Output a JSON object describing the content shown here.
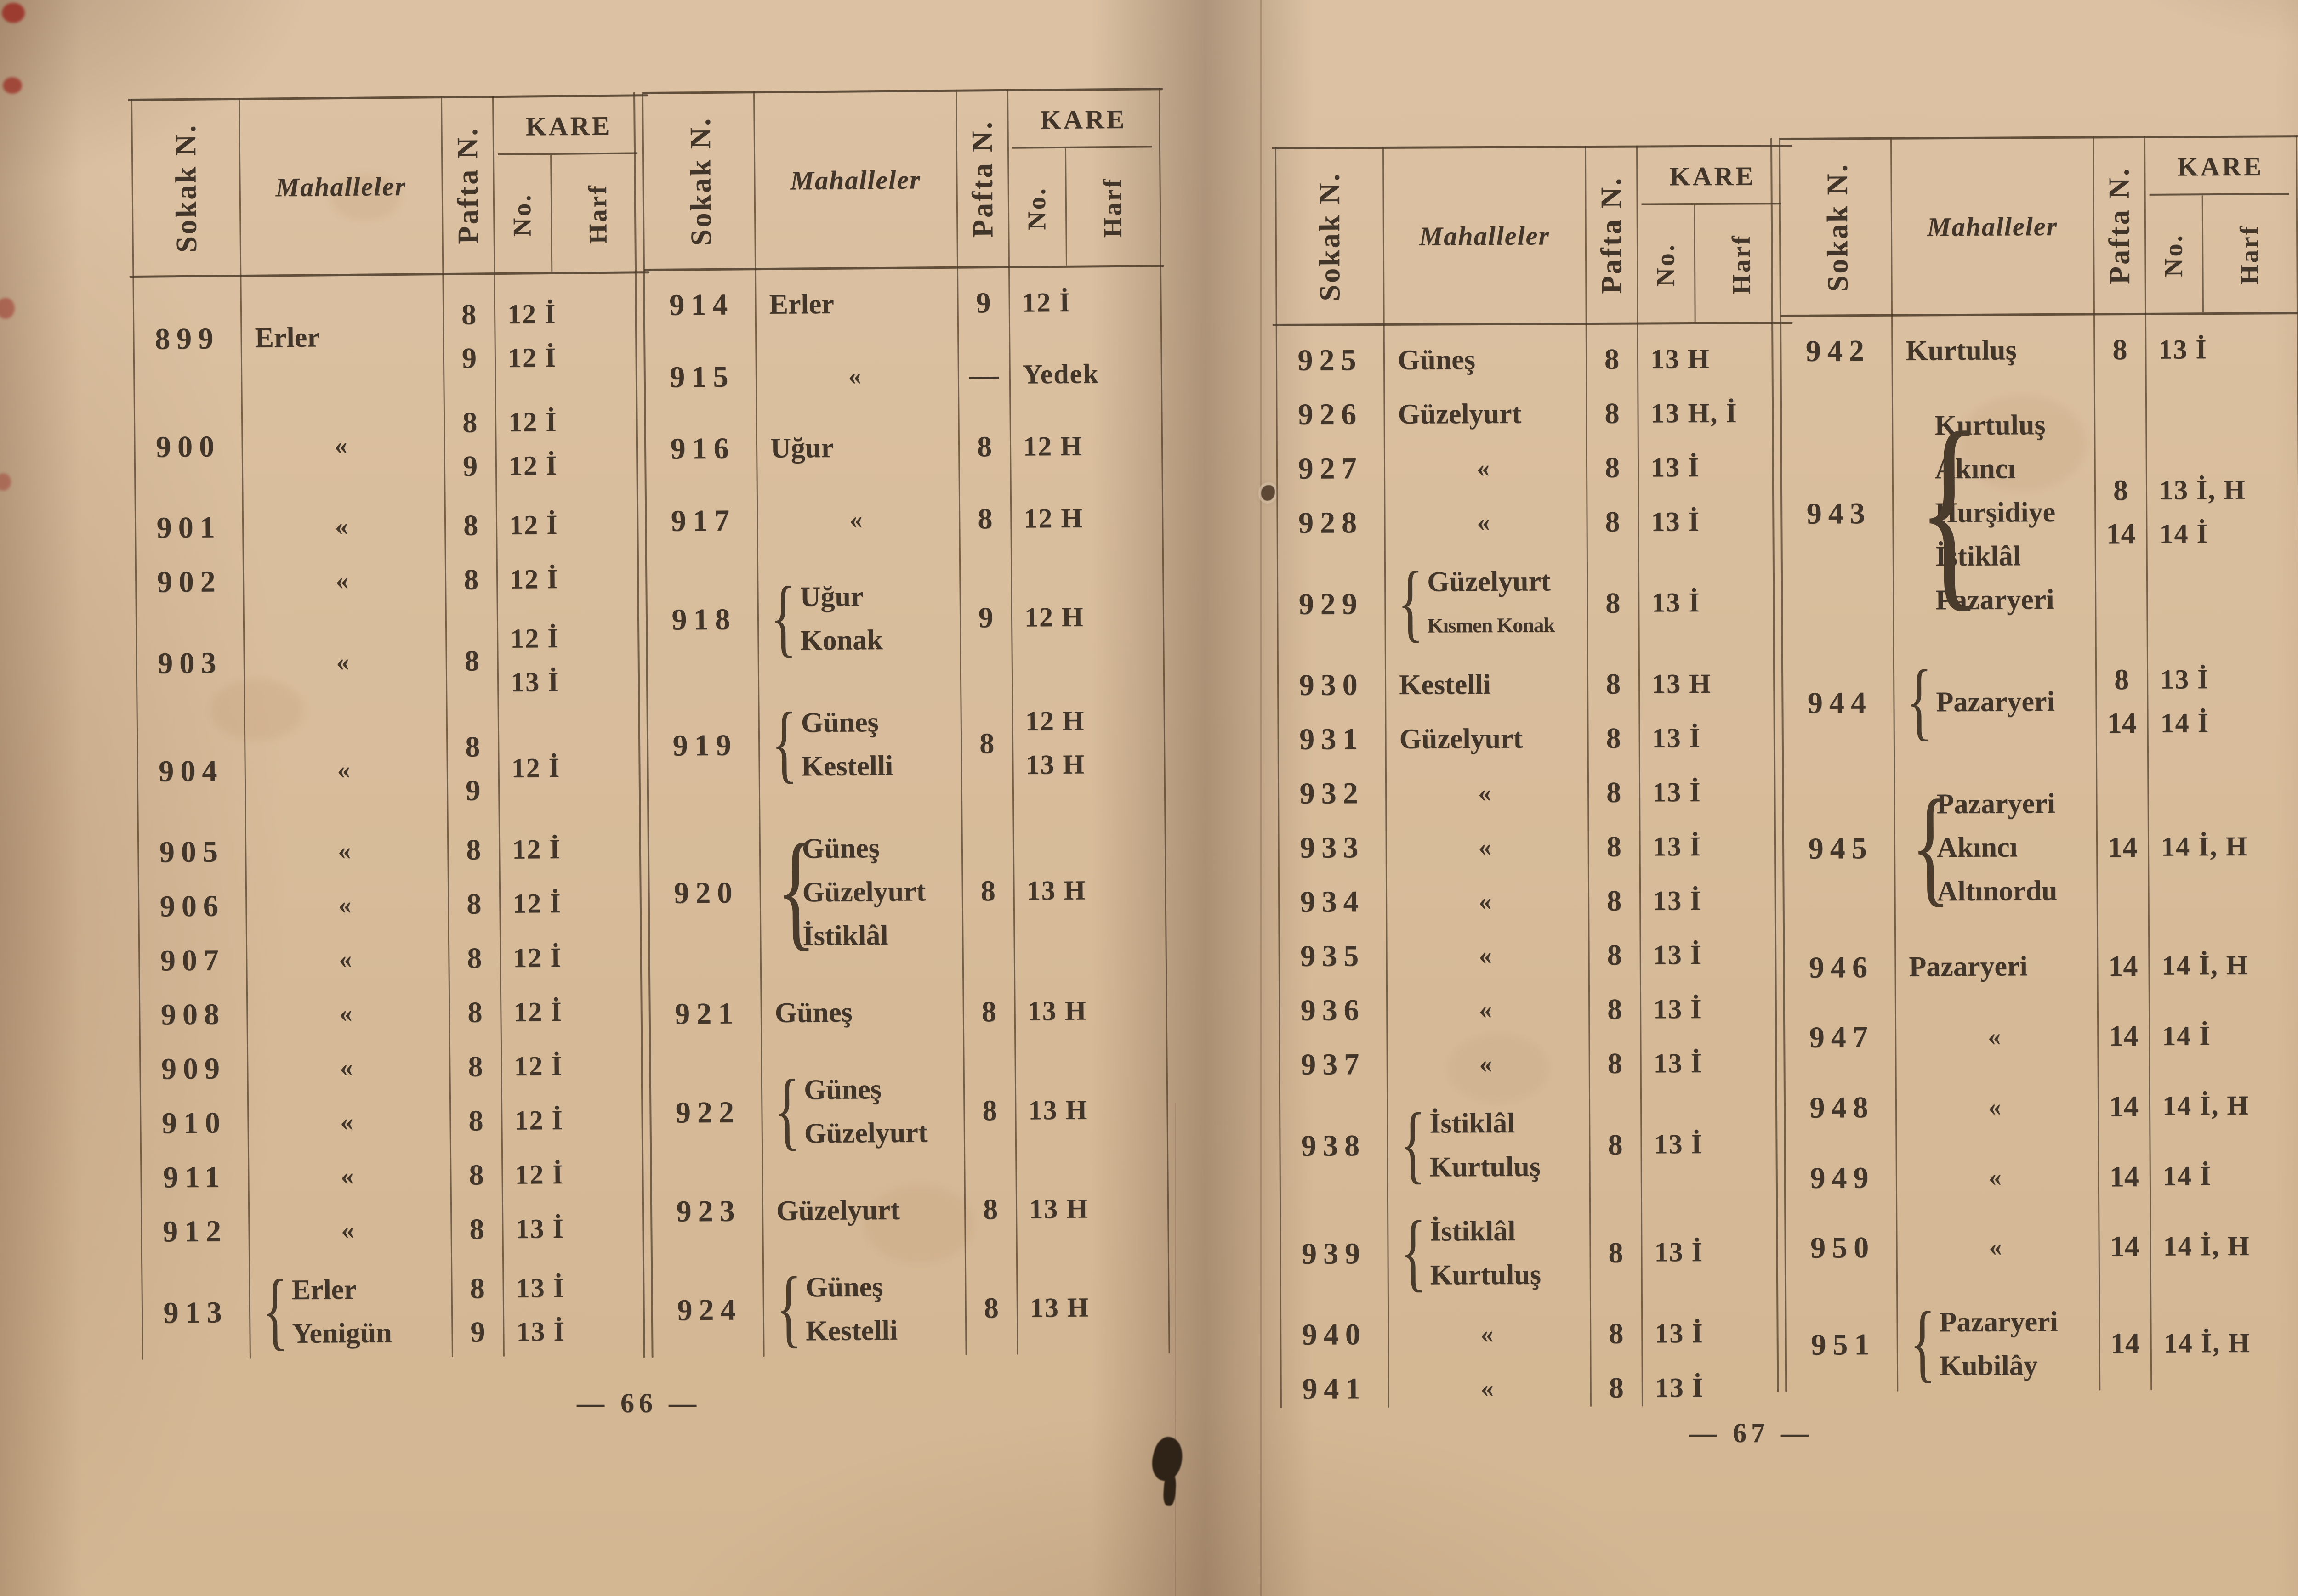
{
  "header_labels": {
    "sokak": "Sokak N.",
    "mahalleler": "Mahalleler",
    "pafta": "Pafta N.",
    "kare": "KARE",
    "no": "No.",
    "harf": "Harf"
  },
  "ditto_mark": "«",
  "pages": [
    {
      "page_number": "66",
      "page_label": "— 66 —",
      "tables": [
        {
          "rows": [
            {
              "no": "899",
              "mah": [
                "Erler"
              ],
              "pafta": [
                "8",
                "9"
              ],
              "kare": [
                "12 İ",
                "12 İ"
              ]
            },
            {
              "no": "900",
              "mah": [
                "«"
              ],
              "pafta": [
                "8",
                "9"
              ],
              "kare": [
                "12 İ",
                "12 İ"
              ]
            },
            {
              "no": "901",
              "mah": [
                "«"
              ],
              "pafta": [
                "8"
              ],
              "kare": [
                "12 İ"
              ]
            },
            {
              "no": "902",
              "mah": [
                "«"
              ],
              "pafta": [
                "8"
              ],
              "kare": [
                "12 İ"
              ]
            },
            {
              "no": "903",
              "mah": [
                "«"
              ],
              "pafta": [
                "8"
              ],
              "kare": [
                "12 İ",
                "13 İ"
              ]
            },
            {
              "no": "904",
              "mah": [
                "«"
              ],
              "pafta": [
                "8",
                "9"
              ],
              "kare": [
                "12 İ"
              ]
            },
            {
              "no": "905",
              "mah": [
                "«"
              ],
              "pafta": [
                "8"
              ],
              "kare": [
                "12 İ"
              ]
            },
            {
              "no": "906",
              "mah": [
                "«"
              ],
              "pafta": [
                "8"
              ],
              "kare": [
                "12 İ"
              ]
            },
            {
              "no": "907",
              "mah": [
                "«"
              ],
              "pafta": [
                "8"
              ],
              "kare": [
                "12 İ"
              ]
            },
            {
              "no": "908",
              "mah": [
                "«"
              ],
              "pafta": [
                "8"
              ],
              "kare": [
                "12 İ"
              ]
            },
            {
              "no": "909",
              "mah": [
                "«"
              ],
              "pafta": [
                "8"
              ],
              "kare": [
                "12 İ"
              ]
            },
            {
              "no": "910",
              "mah": [
                "«"
              ],
              "pafta": [
                "8"
              ],
              "kare": [
                "12 İ"
              ]
            },
            {
              "no": "911",
              "mah": [
                "«"
              ],
              "pafta": [
                "8"
              ],
              "kare": [
                "12 İ"
              ]
            },
            {
              "no": "912",
              "mah": [
                "«"
              ],
              "pafta": [
                "8"
              ],
              "kare": [
                "13 İ"
              ]
            },
            {
              "no": "913",
              "mah": [
                "Erler",
                "Yenigün"
              ],
              "pafta": [
                "8",
                "9"
              ],
              "kare": [
                "13 İ",
                "13 İ"
              ],
              "brace": true
            }
          ]
        },
        {
          "rows": [
            {
              "no": "914",
              "mah": [
                "Erler"
              ],
              "pafta": [
                "9"
              ],
              "kare": [
                "12 İ"
              ]
            },
            {
              "no": "915",
              "mah": [
                "«"
              ],
              "pafta": [
                "—"
              ],
              "kare": [
                "Yedek"
              ]
            },
            {
              "no": "916",
              "mah": [
                "Uğur"
              ],
              "pafta": [
                "8"
              ],
              "kare": [
                "12 H"
              ]
            },
            {
              "no": "917",
              "mah": [
                "«"
              ],
              "pafta": [
                "8"
              ],
              "kare": [
                "12 H"
              ]
            },
            {
              "no": "918",
              "mah": [
                "Uğur",
                "Konak"
              ],
              "pafta": [
                "9"
              ],
              "kare": [
                "12 H"
              ],
              "brace": true
            },
            {
              "no": "919",
              "mah": [
                "Güneş",
                "Kestelli"
              ],
              "pafta": [
                "8"
              ],
              "kare": [
                "12 H",
                "13 H"
              ],
              "brace": true
            },
            {
              "no": "920",
              "mah": [
                "Güneş",
                "Güzelyurt",
                "İstiklâl"
              ],
              "pafta": [
                "8"
              ],
              "kare": [
                "13 H"
              ],
              "brace": true
            },
            {
              "no": "921",
              "mah": [
                "Güneş"
              ],
              "pafta": [
                "8"
              ],
              "kare": [
                "13 H"
              ]
            },
            {
              "no": "922",
              "mah": [
                "Güneş",
                "Güzelyurt"
              ],
              "pafta": [
                "8"
              ],
              "kare": [
                "13 H"
              ],
              "brace": true
            },
            {
              "no": "923",
              "mah": [
                "Güzelyurt"
              ],
              "pafta": [
                "8"
              ],
              "kare": [
                "13 H"
              ]
            },
            {
              "no": "924",
              "mah": [
                "Güneş",
                "Kestelli"
              ],
              "pafta": [
                "8"
              ],
              "kare": [
                "13 H"
              ],
              "brace": true
            }
          ]
        }
      ]
    },
    {
      "page_number": "67",
      "page_label": "— 67 —",
      "tables": [
        {
          "rows": [
            {
              "no": "925",
              "mah": [
                "Güneş"
              ],
              "pafta": [
                "8"
              ],
              "kare": [
                "13 H"
              ]
            },
            {
              "no": "926",
              "mah": [
                "Güzelyurt"
              ],
              "pafta": [
                "8"
              ],
              "kare": [
                "13 H, İ"
              ]
            },
            {
              "no": "927",
              "mah": [
                "«"
              ],
              "pafta": [
                "8"
              ],
              "kare": [
                "13 İ"
              ]
            },
            {
              "no": "928",
              "mah": [
                "«"
              ],
              "pafta": [
                "8"
              ],
              "kare": [
                "13 İ"
              ]
            },
            {
              "no": "929",
              "mah": [
                "Güzelyurt",
                "Kısmen Konak"
              ],
              "mah_small": [
                false,
                true
              ],
              "pafta": [
                "8"
              ],
              "kare": [
                "13 İ"
              ],
              "brace": true
            },
            {
              "no": "930",
              "mah": [
                "Kestelli"
              ],
              "pafta": [
                "8"
              ],
              "kare": [
                "13 H"
              ]
            },
            {
              "no": "931",
              "mah": [
                "Güzelyurt"
              ],
              "pafta": [
                "8"
              ],
              "kare": [
                "13 İ"
              ]
            },
            {
              "no": "932",
              "mah": [
                "«"
              ],
              "pafta": [
                "8"
              ],
              "kare": [
                "13 İ"
              ]
            },
            {
              "no": "933",
              "mah": [
                "«"
              ],
              "pafta": [
                "8"
              ],
              "kare": [
                "13 İ"
              ]
            },
            {
              "no": "934",
              "mah": [
                "«"
              ],
              "pafta": [
                "8"
              ],
              "kare": [
                "13 İ"
              ]
            },
            {
              "no": "935",
              "mah": [
                "«"
              ],
              "pafta": [
                "8"
              ],
              "kare": [
                "13 İ"
              ]
            },
            {
              "no": "936",
              "mah": [
                "«"
              ],
              "pafta": [
                "8"
              ],
              "kare": [
                "13 İ"
              ]
            },
            {
              "no": "937",
              "mah": [
                "«"
              ],
              "pafta": [
                "8"
              ],
              "kare": [
                "13 İ"
              ]
            },
            {
              "no": "938",
              "mah": [
                "İstiklâl",
                "Kurtuluş"
              ],
              "pafta": [
                "8"
              ],
              "kare": [
                "13 İ"
              ],
              "brace": true
            },
            {
              "no": "939",
              "mah": [
                "İstiklâl",
                "Kurtuluş"
              ],
              "pafta": [
                "8"
              ],
              "kare": [
                "13 İ"
              ],
              "brace": true
            },
            {
              "no": "940",
              "mah": [
                "«"
              ],
              "pafta": [
                "8"
              ],
              "kare": [
                "13 İ"
              ]
            },
            {
              "no": "941",
              "mah": [
                "«"
              ],
              "pafta": [
                "8"
              ],
              "kare": [
                "13 İ"
              ]
            }
          ]
        },
        {
          "rows": [
            {
              "no": "942",
              "mah": [
                "Kurtuluş"
              ],
              "pafta": [
                "8"
              ],
              "kare": [
                "13 İ"
              ]
            },
            {
              "no": "943",
              "mah": [
                "Kurtuluş",
                "Akıncı",
                "Hurşidiye",
                "İstiklâl",
                "Pazaryeri"
              ],
              "pafta": [
                "8",
                "14"
              ],
              "kare": [
                "13 İ, H",
                "14 İ"
              ],
              "brace": true
            },
            {
              "no": "944",
              "mah": [
                "Pazaryeri"
              ],
              "pafta": [
                "8",
                "14"
              ],
              "kare": [
                "13 İ",
                "14 İ"
              ],
              "brace": true
            },
            {
              "no": "945",
              "mah": [
                "Pazaryeri",
                "Akıncı",
                "Altınordu"
              ],
              "pafta": [
                "14"
              ],
              "kare": [
                "14 İ, H"
              ],
              "brace": true
            },
            {
              "no": "946",
              "mah": [
                "Pazaryeri"
              ],
              "pafta": [
                "14"
              ],
              "kare": [
                "14 İ, H"
              ]
            },
            {
              "no": "947",
              "mah": [
                "«"
              ],
              "pafta": [
                "14"
              ],
              "kare": [
                "14 İ"
              ]
            },
            {
              "no": "948",
              "mah": [
                "«"
              ],
              "pafta": [
                "14"
              ],
              "kare": [
                "14 İ, H"
              ]
            },
            {
              "no": "949",
              "mah": [
                "«"
              ],
              "pafta": [
                "14"
              ],
              "kare": [
                "14 İ"
              ]
            },
            {
              "no": "950",
              "mah": [
                "«"
              ],
              "pafta": [
                "14"
              ],
              "kare": [
                "14 İ, H"
              ]
            },
            {
              "no": "951",
              "mah": [
                "Pazaryeri",
                "Kubilây"
              ],
              "pafta": [
                "14"
              ],
              "kare": [
                "14 İ, H"
              ],
              "brace": true
            }
          ]
        }
      ]
    }
  ]
}
